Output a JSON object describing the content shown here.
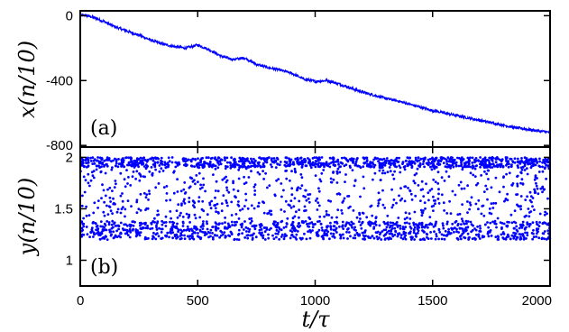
{
  "chart_data": [
    {
      "type": "line",
      "panel_label": "(a)",
      "ylabel": "x(n/10)",
      "xlim": [
        0,
        2000
      ],
      "ylim": [
        -810,
        30
      ],
      "yticks": [
        0,
        -400,
        -800
      ],
      "ytick_labels": [
        "0",
        "-400",
        "-800"
      ],
      "grid": false,
      "series": [
        {
          "color": "#0000ff",
          "x": [
            0,
            20,
            50,
            100,
            150,
            200,
            250,
            300,
            350,
            400,
            450,
            500,
            550,
            600,
            650,
            700,
            750,
            800,
            850,
            900,
            950,
            1000,
            1050,
            1100,
            1150,
            1200,
            1250,
            1300,
            1350,
            1400,
            1450,
            1500,
            1550,
            1600,
            1650,
            1700,
            1750,
            1800,
            1850,
            1900,
            1950,
            2000
          ],
          "y": [
            0,
            3,
            -8,
            -35,
            -70,
            -95,
            -120,
            -150,
            -175,
            -190,
            -200,
            -180,
            -210,
            -250,
            -270,
            -260,
            -300,
            -320,
            -335,
            -355,
            -390,
            -405,
            -400,
            -420,
            -445,
            -470,
            -490,
            -510,
            -525,
            -545,
            -565,
            -585,
            -600,
            -615,
            -630,
            -645,
            -660,
            -675,
            -690,
            -700,
            -710,
            -720
          ]
        }
      ]
    },
    {
      "type": "scatter",
      "panel_label": "(b)",
      "ylabel": "y(n/10)",
      "xlabel": "t/τ",
      "xlim": [
        0,
        2000
      ],
      "ylim": [
        0.75,
        2.1
      ],
      "xticks": [
        0,
        500,
        1000,
        1500,
        2000
      ],
      "xtick_labels": [
        "0",
        "500",
        "1000",
        "1500",
        "2000"
      ],
      "yticks": [
        1,
        1.5,
        2
      ],
      "ytick_labels": [
        "1",
        "1.5",
        "2"
      ],
      "grid": false,
      "series": [
        {
          "color": "#0000ff",
          "bands": [
            {
              "y_min": 1.9,
              "y_max": 2.0,
              "share": 0.38
            },
            {
              "y_min": 1.2,
              "y_max": 1.38,
              "share": 0.38
            },
            {
              "y_min": 1.4,
              "y_max": 1.9,
              "share": 0.24
            }
          ]
        }
      ]
    }
  ]
}
